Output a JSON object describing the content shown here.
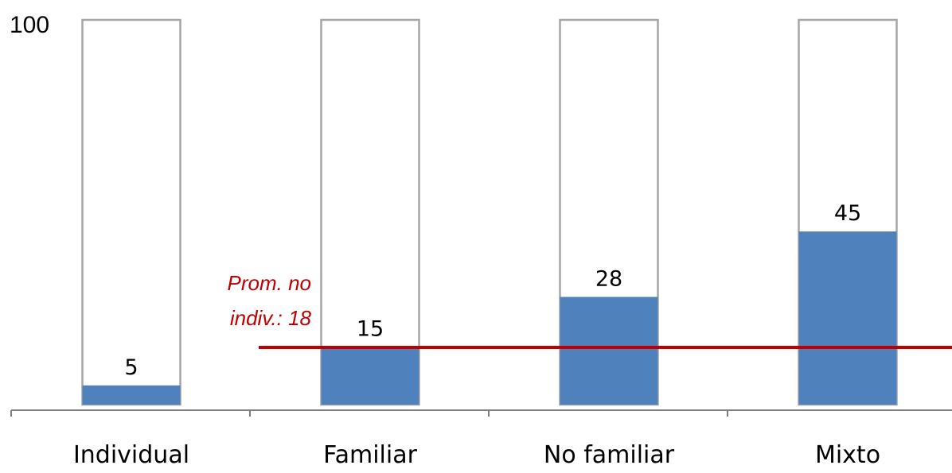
{
  "chart_data": {
    "type": "bar",
    "title": "",
    "xlabel": "",
    "ylabel": "",
    "ylim": [
      0,
      100
    ],
    "y_max_label": "100",
    "categories": [
      "Individual",
      "Familiar",
      "No familiar",
      "Mixto"
    ],
    "values": [
      5,
      15,
      28,
      45
    ],
    "data_labels": [
      "5",
      "15",
      "28",
      "45"
    ],
    "grid": false,
    "legend": "none",
    "bar_color": "#4f81bd",
    "reference_line": {
      "value": 18,
      "label_line1": "Prom. no",
      "label_line2": "indiv.: 18",
      "color": "#c00000"
    }
  }
}
